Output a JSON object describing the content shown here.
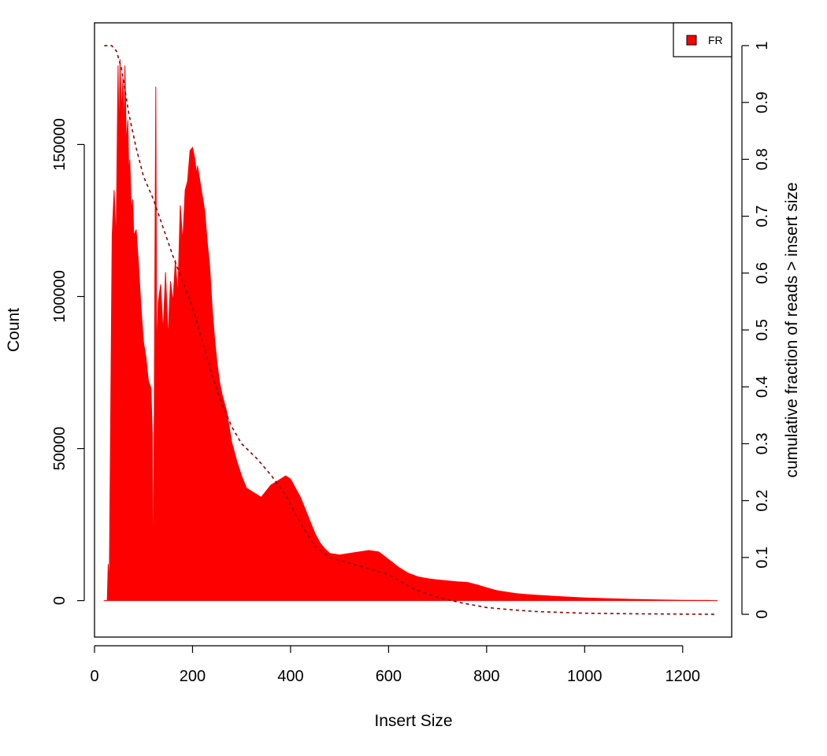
{
  "chart_data": {
    "type": "area",
    "title": "",
    "xlabel": "Insert Size",
    "ylabel": "Count",
    "y2label": "cumulative fraction of reads > insert size",
    "xlim": [
      0,
      1300
    ],
    "ylim": [
      -12000,
      190000
    ],
    "y2lim": [
      -0.04,
      1.04
    ],
    "x_ticks": [
      0,
      200,
      400,
      600,
      800,
      1000,
      1200
    ],
    "y_ticks": [
      0,
      50000,
      100000,
      150000
    ],
    "y2_ticks": [
      0,
      0.1,
      0.2,
      0.3,
      0.4,
      0.5,
      0.6,
      0.7,
      0.8,
      0.9,
      1
    ],
    "legend": {
      "position": "top-right",
      "entries": [
        {
          "label": "FR",
          "color": "#ff0000"
        }
      ]
    },
    "colors": {
      "histogram": "#ff0000",
      "cumulative": "#8b0000"
    },
    "series": [
      {
        "name": "FR",
        "kind": "histogram",
        "x": [
          20,
          26,
          28,
          30,
          33,
          36,
          40,
          44,
          48,
          50,
          52,
          55,
          58,
          60,
          62,
          65,
          68,
          70,
          72,
          75,
          78,
          80,
          85,
          90,
          95,
          100,
          105,
          110,
          115,
          118,
          120,
          123,
          125,
          127,
          130,
          135,
          140,
          145,
          150,
          155,
          160,
          165,
          170,
          175,
          180,
          185,
          190,
          195,
          200,
          205,
          208,
          210,
          215,
          220,
          225,
          230,
          235,
          240,
          245,
          250,
          255,
          260,
          270,
          280,
          290,
          300,
          310,
          320,
          330,
          340,
          350,
          360,
          370,
          380,
          390,
          400,
          410,
          420,
          430,
          440,
          450,
          460,
          470,
          480,
          500,
          520,
          540,
          560,
          580,
          600,
          620,
          640,
          660,
          680,
          700,
          720,
          740,
          760,
          780,
          800,
          820,
          840,
          860,
          880,
          900,
          950,
          1000,
          1050,
          1100,
          1150,
          1200,
          1250,
          1270
        ],
        "y": [
          0,
          0,
          12000,
          4000,
          60000,
          120000,
          135000,
          118000,
          176000,
          150000,
          178000,
          160000,
          172000,
          152000,
          176000,
          150000,
          158000,
          140000,
          145000,
          128000,
          132000,
          120000,
          122000,
          110000,
          96000,
          85000,
          80000,
          72000,
          70000,
          55000,
          0,
          100000,
          169000,
          80000,
          98000,
          104000,
          88000,
          108000,
          86000,
          105000,
          98000,
          112000,
          100000,
          130000,
          118000,
          135000,
          138000,
          148000,
          149000,
          145000,
          140000,
          143000,
          138000,
          133000,
          128000,
          118000,
          110000,
          96000,
          86000,
          78000,
          72000,
          68000,
          62000,
          52000,
          46000,
          41000,
          37000,
          36000,
          35000,
          34000,
          36000,
          38000,
          39000,
          40000,
          41000,
          40000,
          37000,
          34000,
          30000,
          26000,
          22000,
          19000,
          17000,
          15500,
          15000,
          15500,
          16000,
          16500,
          16000,
          13500,
          11000,
          9000,
          7800,
          7200,
          6800,
          6500,
          6200,
          6000,
          5200,
          4200,
          3300,
          2800,
          2300,
          2000,
          1800,
          1300,
          900,
          600,
          400,
          250,
          120,
          60,
          0
        ]
      },
      {
        "name": "cumulative fraction",
        "kind": "line",
        "axis": "right",
        "x": [
          20,
          35,
          45,
          55,
          70,
          85,
          100,
          120,
          140,
          160,
          180,
          200,
          220,
          240,
          260,
          280,
          300,
          330,
          360,
          390,
          420,
          450,
          480,
          520,
          560,
          600,
          650,
          700,
          750,
          800,
          850,
          900,
          1000,
          1100,
          1200,
          1270
        ],
        "y": [
          1,
          1,
          0.99,
          0.96,
          0.88,
          0.82,
          0.77,
          0.73,
          0.68,
          0.63,
          0.585,
          0.54,
          0.48,
          0.42,
          0.37,
          0.33,
          0.3,
          0.275,
          0.245,
          0.21,
          0.16,
          0.12,
          0.1,
          0.09,
          0.08,
          0.07,
          0.045,
          0.03,
          0.02,
          0.012,
          0.008,
          0.005,
          0.002,
          0.001,
          0.0005,
          0
        ]
      }
    ]
  }
}
